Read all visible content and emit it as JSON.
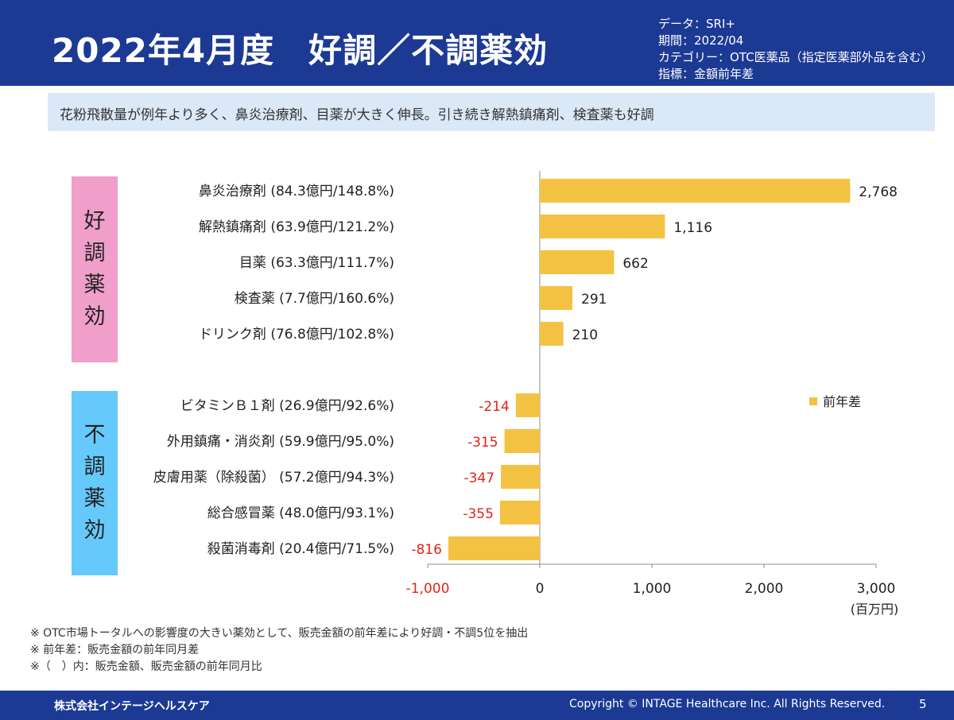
{
  "header": {
    "title": "2022年4月度　好調／不調薬効",
    "meta": [
      "データ：SRI+",
      "期間：2022/04",
      "カテゴリー：OTC医薬品（指定医薬部外品を含む）",
      "指標：金額前年差"
    ]
  },
  "summary": "花粉飛散量が例年より多く、鼻炎治療剤、目薬が大きく伸長。引き続き解熱鎮痛剤、検査薬も好調",
  "groups": {
    "good": [
      "好",
      "調",
      "薬",
      "効"
    ],
    "bad": [
      "不",
      "調",
      "薬",
      "効"
    ]
  },
  "chart_data": {
    "type": "bar",
    "orientation": "horizontal",
    "categories": [
      "鼻炎治療剤 (84.3億円/148.8%)",
      "解熱鎮痛剤 (63.9億円/121.2%)",
      "目薬 (63.3億円/111.7%)",
      "検査薬 (7.7億円/160.6%)",
      "ドリンク剤 (76.8億円/102.8%)",
      "ビタミンＢ１剤 (26.9億円/92.6%)",
      "外用鎮痛・消炎剤 (59.9億円/95.0%)",
      "皮膚用薬（除殺菌） (57.2億円/94.3%)",
      "総合感冒薬 (48.0億円/93.1%)",
      "殺菌消毒剤 (20.4億円/71.5%)"
    ],
    "series": [
      {
        "name": "前年差",
        "values": [
          2768,
          1116,
          662,
          291,
          210,
          -214,
          -315,
          -347,
          -355,
          -816
        ]
      }
    ],
    "value_labels": [
      "2,768",
      "1,116",
      "662",
      "291",
      "210",
      "-214",
      "-315",
      "-347",
      "-355",
      "-816"
    ],
    "xlim": [
      -1000,
      3000
    ],
    "xticks": [
      -1000,
      0,
      1000,
      2000,
      3000
    ],
    "xtick_labels": [
      "-1,000",
      "0",
      "1,000",
      "2,000",
      "3,000"
    ],
    "unit_label": "(百万円)",
    "legend_position": "right",
    "colors": {
      "bar": "#f4c243",
      "negative_text": "#e2231a",
      "text": "#222222",
      "axis": "#8c8c8c"
    }
  },
  "footnotes": [
    "※ OTC市場トータルへの影響度の大きい薬効として、販売金額の前年差により好調・不調5位を抽出",
    "※ 前年差：販売金額の前年同月差",
    "※（　）内：販売金額、販売金額の前年同月比"
  ],
  "footer": {
    "company": "株式会社インテージヘルスケア",
    "copyright": "Copyright © INTAGE Healthcare Inc. All Rights Reserved.",
    "page": "5"
  }
}
